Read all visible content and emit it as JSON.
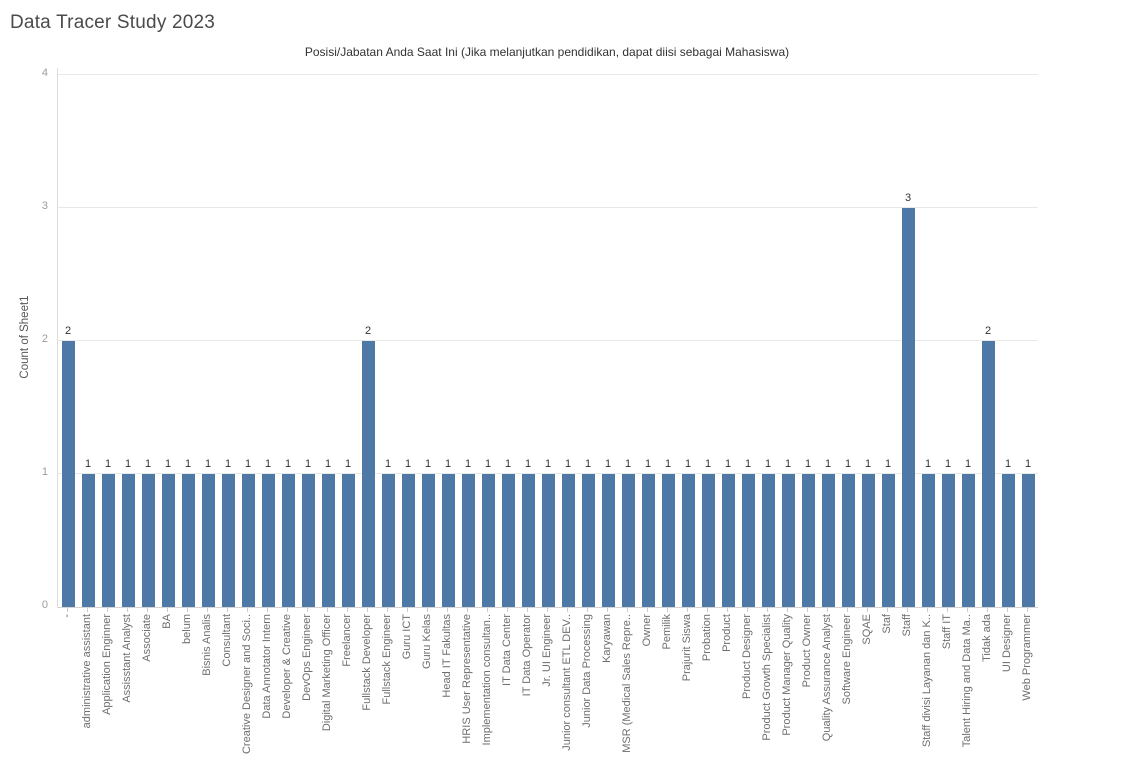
{
  "page": {
    "title": "Data Tracer Study 2023"
  },
  "chart_data": {
    "type": "bar",
    "title": "Posisi/Jabatan Anda Saat Ini (Jika melanjutkan pendidikan, dapat diisi sebagai Mahasiswa)",
    "xlabel": "",
    "ylabel": "Count of Sheet1",
    "ylim": [
      0,
      4.05
    ],
    "yticks": [
      0,
      1,
      2,
      3,
      4
    ],
    "grid": true,
    "legend": "none",
    "data_labels": true,
    "bar_color": "#4e79a7",
    "categories": [
      "-",
      "administrative assistant",
      "Application Enginner",
      "Assisstant Analyst",
      "Associate",
      "BA",
      "belum",
      "Bisnis Analis",
      "Consultant",
      "Creative Designer and Soci..",
      "Data Annotator Intern",
      "Developer & Creative",
      "DevOps Engineer",
      "Digital Marketing Officer",
      "Freelancer",
      "Fullstack Developer",
      "Fullstack Engineer",
      "Guru ICT",
      "Guru Kelas",
      "Head IT Fakultas",
      "HRIS User Representative",
      "Implementation consultan..",
      "IT Data Center",
      "IT Data Operator",
      "Jr. UI Engineer",
      "Junior consultant ETL DEV..",
      "Junior Data Processing",
      "Karyawan",
      "MSR (Medical Sales Repre..",
      "Owner",
      "Pemilik",
      "Prajurit Siswa",
      "Probation",
      "Product",
      "Product Designer",
      "Product Growth Specialist",
      "Product Manager Quality",
      "Product Owner",
      "Quality Assurance Analyst",
      "Software Engineer",
      "SQAE",
      "Staf",
      "Staff",
      "Staff divisi Layanan dan K..",
      "Staff IT",
      "Talent Hiring and Data Ma..",
      "Tidak ada",
      "UI Designer",
      "Web Programmer"
    ],
    "values": [
      2,
      1,
      1,
      1,
      1,
      1,
      1,
      1,
      1,
      1,
      1,
      1,
      1,
      1,
      1,
      2,
      1,
      1,
      1,
      1,
      1,
      1,
      1,
      1,
      1,
      1,
      1,
      1,
      1,
      1,
      1,
      1,
      1,
      1,
      1,
      1,
      1,
      1,
      1,
      1,
      1,
      1,
      3,
      1,
      1,
      1,
      2,
      1,
      1
    ]
  }
}
